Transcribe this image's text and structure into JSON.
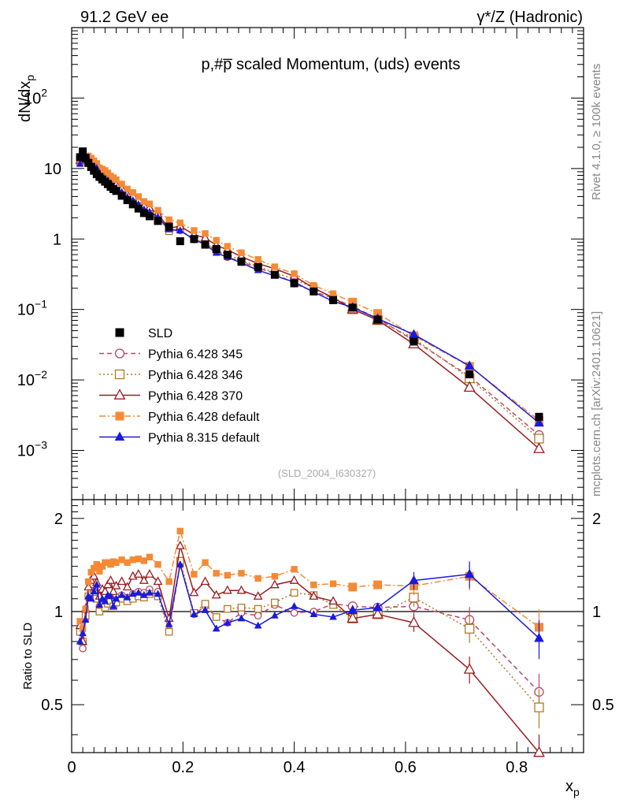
{
  "header": {
    "left": "91.2 GeV ee",
    "right": "γ*/Z (Hadronic)"
  },
  "side_labels": {
    "rivet": "Rivet 4.1.0, ≥ 100k events",
    "mcplots": "mcplots.cern.ch [arXiv:2401.10621]"
  },
  "chart_data": {
    "type": "scatter",
    "title": "p,#p̅ scaled Momentum, (uds) events",
    "analysis_tag": "(SLD_2004_I630327)",
    "xlabel": "x",
    "xlabel_sub": "p",
    "ylabel": "dN/dx",
    "ylabel_sub": "p",
    "ratio_ylabel": "Ratio to SLD",
    "xlim": [
      0,
      0.92
    ],
    "ylim_log": [
      0.0002,
      1000
    ],
    "ratio_ylim": [
      0.35,
      2.3
    ],
    "x_ticks": [
      "0",
      "0.2",
      "0.4",
      "0.6",
      "0.8"
    ],
    "x_tick_values": [
      0,
      0.2,
      0.4,
      0.6,
      0.8
    ],
    "y_tick_labels": [
      {
        "base": "10",
        "exp": "2",
        "value": 100
      },
      {
        "base": "10",
        "exp": "",
        "value": 10
      },
      {
        "base": "1",
        "exp": "",
        "value": 1
      },
      {
        "base": "10",
        "exp": "−1",
        "value": 0.1
      },
      {
        "base": "10",
        "exp": "−2",
        "value": 0.01
      },
      {
        "base": "10",
        "exp": "−3",
        "value": 0.001
      }
    ],
    "ratio_ticks": [
      "0.5",
      "1",
      "2"
    ],
    "ratio_tick_values": [
      0.5,
      1,
      2
    ],
    "x": [
      0.015,
      0.02,
      0.025,
      0.03,
      0.035,
      0.04,
      0.045,
      0.05,
      0.055,
      0.06,
      0.065,
      0.07,
      0.075,
      0.08,
      0.09,
      0.1,
      0.11,
      0.12,
      0.13,
      0.14,
      0.155,
      0.175,
      0.195,
      0.22,
      0.24,
      0.26,
      0.28,
      0.305,
      0.335,
      0.365,
      0.4,
      0.435,
      0.47,
      0.505,
      0.55,
      0.615,
      0.715,
      0.84
    ],
    "series": [
      {
        "name": "SLD",
        "color": "#000000",
        "marker": "square-filled",
        "line": "none",
        "values": [
          14.5,
          17.5,
          14.2,
          12.0,
          10.5,
          9.3,
          8.3,
          7.6,
          7.0,
          6.5,
          6.0,
          5.5,
          5.1,
          4.8,
          4.1,
          3.55,
          3.1,
          2.7,
          2.33,
          2.1,
          1.8,
          1.5,
          0.93,
          1.0,
          0.83,
          0.72,
          0.6,
          0.48,
          0.4,
          0.31,
          0.235,
          0.18,
          0.136,
          0.106,
          0.072,
          0.035,
          0.012,
          0.003
        ]
      },
      {
        "name": "Pythia 6.428 345",
        "color": "#b8476a",
        "marker": "circle-open",
        "line": "dashed",
        "ratio": [
          0.86,
          0.76,
          0.95,
          1.12,
          1.17,
          1.16,
          1.14,
          1.04,
          1.08,
          1.05,
          1.07,
          1.11,
          1.05,
          1.09,
          1.13,
          1.11,
          1.14,
          1.16,
          1.15,
          1.18,
          1.16,
          0.87,
          1.42,
          0.98,
          1.04,
          0.96,
          0.92,
          0.99,
          0.97,
          1.05,
          0.99,
          1.0,
          1.06,
          1.04,
          1.03,
          1.04,
          0.94,
          0.55
        ]
      },
      {
        "name": "Pythia 6.428 346",
        "color": "#b07a2a",
        "marker": "square-open",
        "line": "dotted",
        "ratio": [
          0.86,
          0.8,
          0.97,
          1.12,
          1.13,
          1.14,
          1.1,
          1.0,
          1.05,
          1.03,
          1.06,
          1.08,
          1.04,
          1.07,
          1.1,
          1.08,
          1.1,
          1.12,
          1.11,
          1.14,
          1.12,
          0.86,
          1.46,
          0.99,
          1.06,
          0.96,
          1.02,
          1.03,
          1.02,
          1.07,
          1.15,
          1.13,
          1.05,
          0.95,
          0.98,
          1.11,
          0.88,
          0.49
        ]
      },
      {
        "name": "Pythia 6.428 370",
        "color": "#9b1c20",
        "marker": "triangle-open",
        "line": "solid",
        "ratio": [
          0.9,
          0.8,
          1.02,
          1.2,
          1.26,
          1.3,
          1.24,
          1.12,
          1.18,
          1.16,
          1.22,
          1.26,
          1.16,
          1.21,
          1.25,
          1.2,
          1.3,
          1.32,
          1.26,
          1.32,
          1.25,
          0.95,
          1.63,
          1.15,
          1.25,
          1.13,
          1.17,
          1.17,
          1.12,
          1.22,
          1.26,
          1.12,
          1.08,
          0.95,
          0.98,
          0.92,
          0.65,
          0.35
        ]
      },
      {
        "name": "Pythia 6.428 default",
        "color": "#f58a36",
        "marker": "square-filled",
        "line": "dashdot",
        "ratio": [
          0.93,
          0.88,
          1.02,
          1.25,
          1.34,
          1.38,
          1.42,
          1.35,
          1.4,
          1.44,
          1.44,
          1.42,
          1.45,
          1.44,
          1.47,
          1.44,
          1.47,
          1.48,
          1.46,
          1.5,
          1.42,
          1.25,
          1.82,
          1.32,
          1.44,
          1.33,
          1.31,
          1.33,
          1.28,
          1.3,
          1.37,
          1.22,
          1.23,
          1.2,
          1.22,
          1.21,
          1.3,
          0.89
        ]
      },
      {
        "name": "Pythia 8.315 default",
        "color": "#1a1adc",
        "marker": "triangle-filled",
        "line": "solid",
        "ratio": [
          0.8,
          0.85,
          0.94,
          1.12,
          1.1,
          1.16,
          1.22,
          1.05,
          1.1,
          1.08,
          1.13,
          1.12,
          1.04,
          1.1,
          1.13,
          1.11,
          1.14,
          1.15,
          1.13,
          1.15,
          1.14,
          0.91,
          1.42,
          0.98,
          1.01,
          0.88,
          0.92,
          0.95,
          0.9,
          0.97,
          1.04,
          0.98,
          0.96,
          1.01,
          1.03,
          1.26,
          1.32,
          0.82
        ]
      }
    ]
  }
}
